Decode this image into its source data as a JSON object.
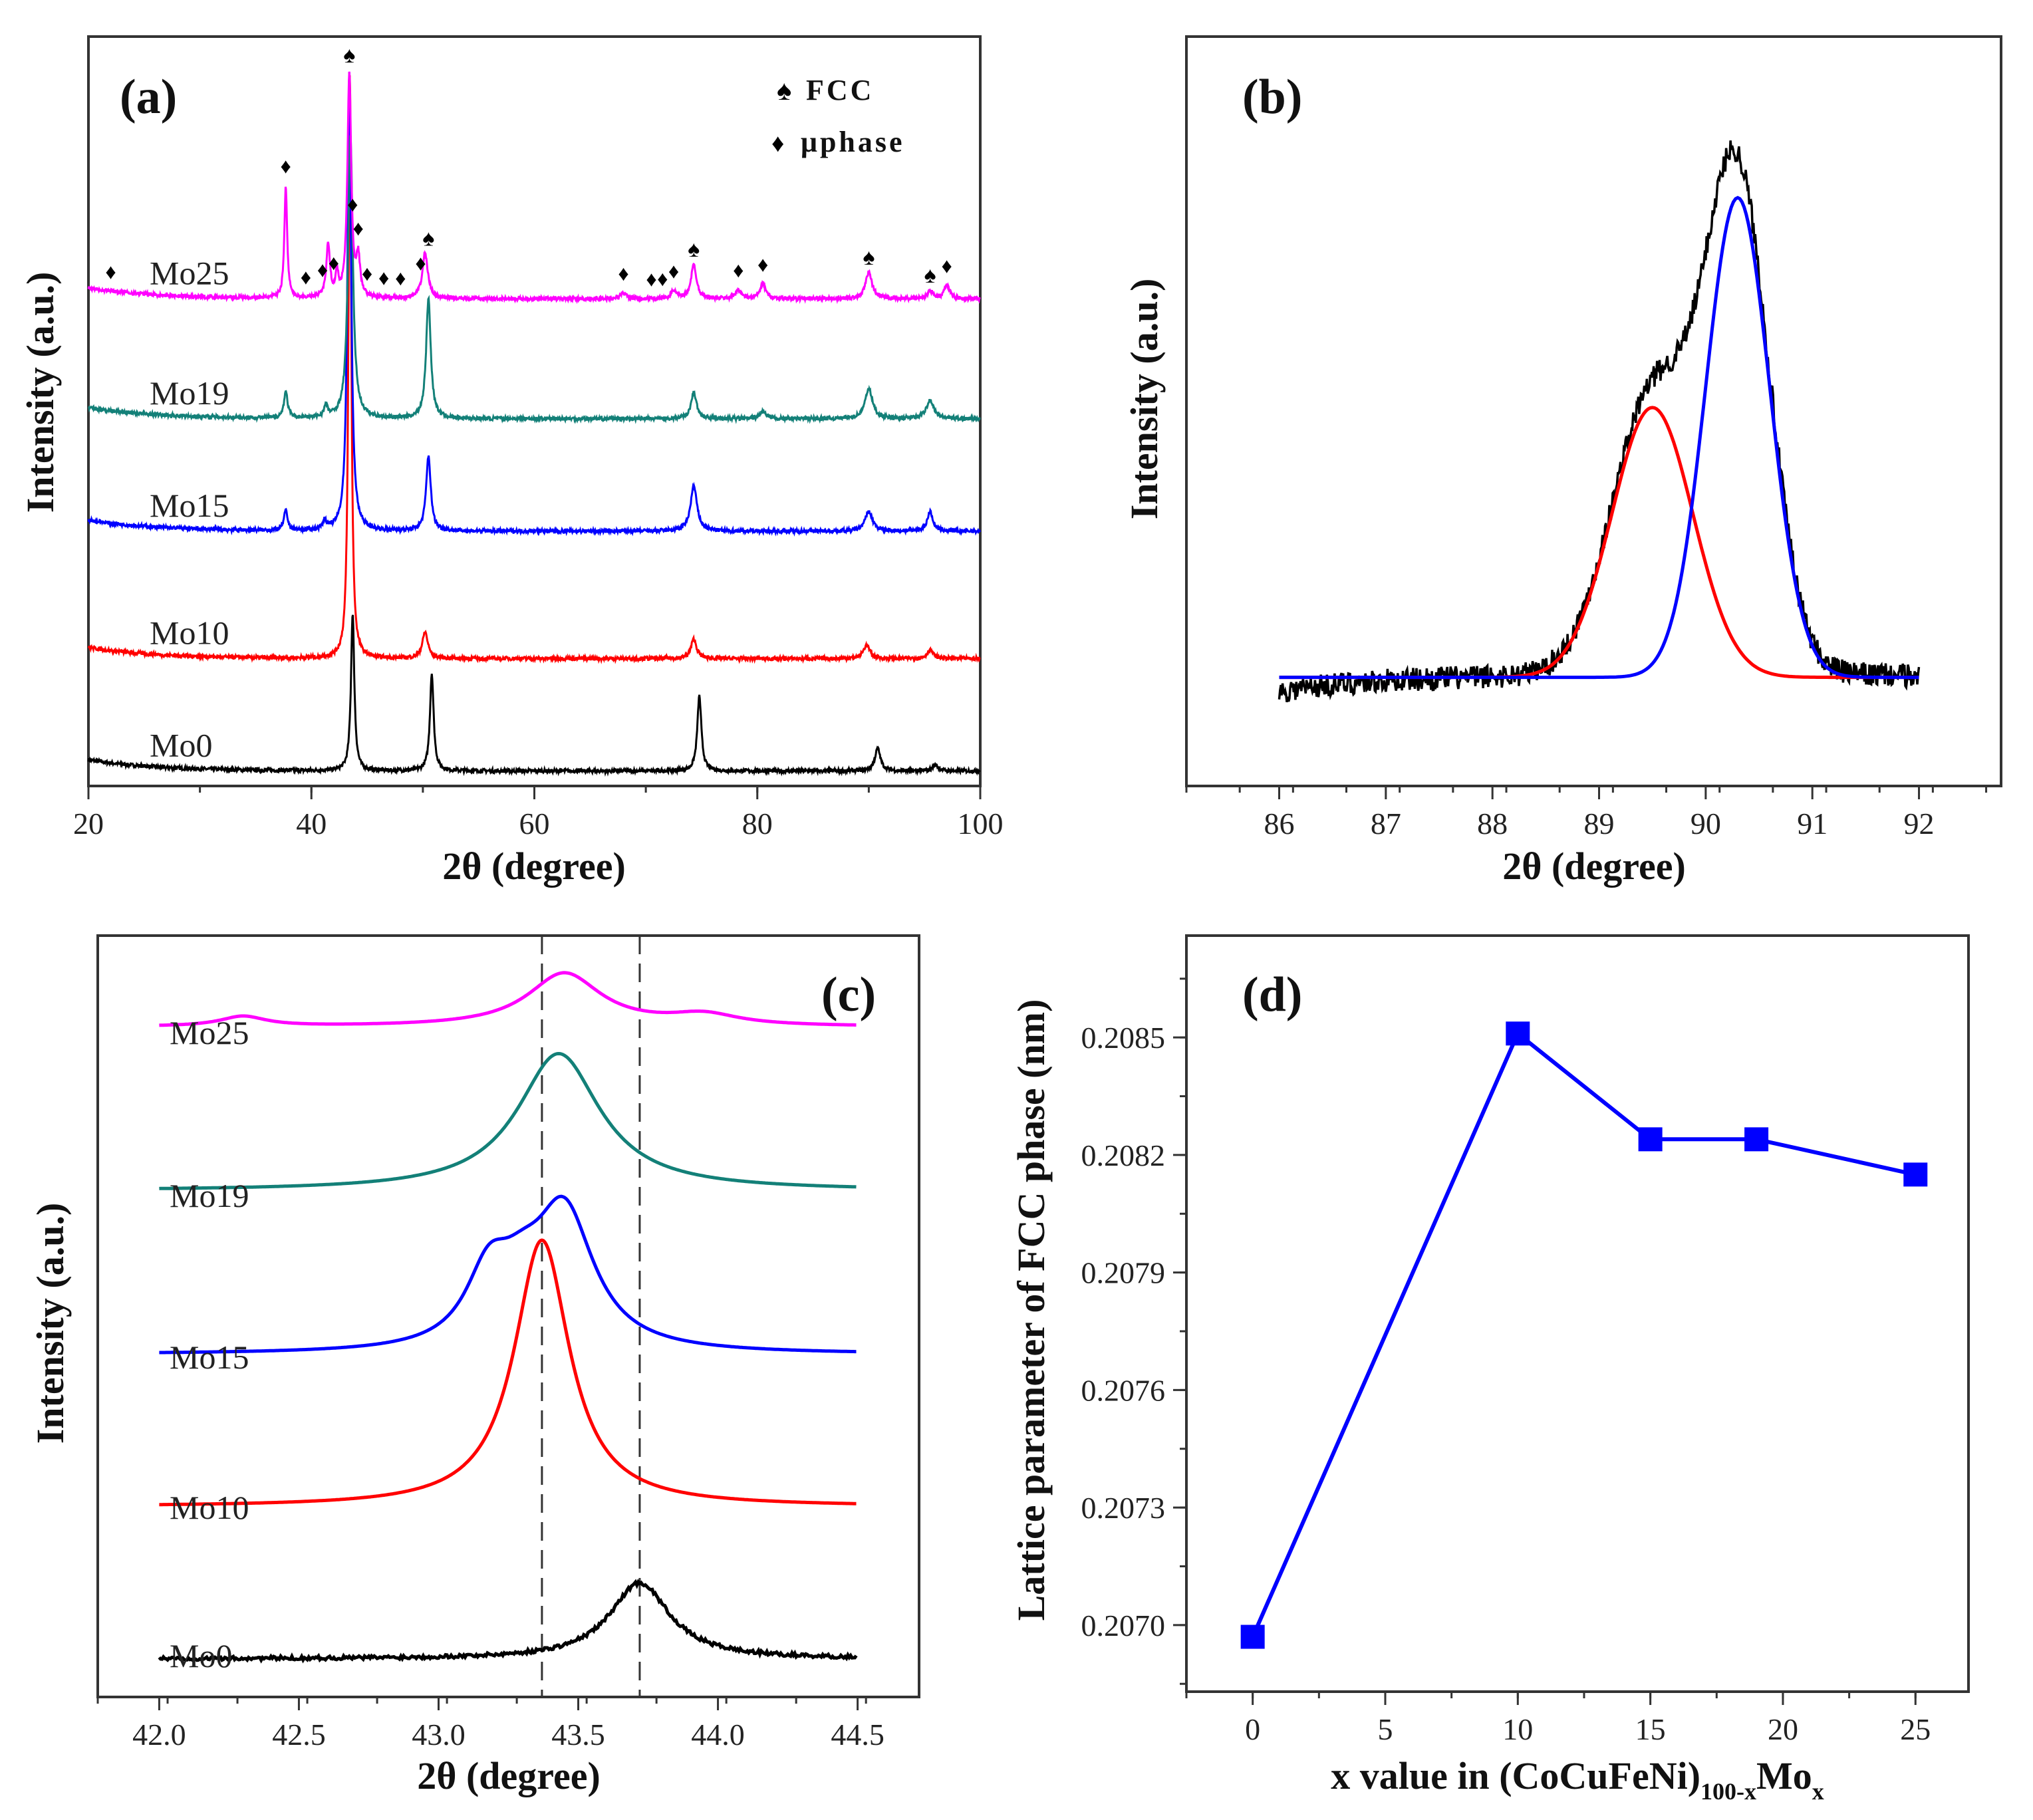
{
  "chart_data": [
    {
      "panel": "(a)",
      "type": "line",
      "xlabel": "2θ  (degree)",
      "ylabel": "Intensity (a.u.)",
      "xlim": [
        20,
        100
      ],
      "xticks": [
        "20",
        "40",
        "60",
        "80",
        "100"
      ],
      "legend": {
        "placement": "top-right",
        "entries": [
          {
            "symbol": "spade",
            "label": "FCC"
          },
          {
            "symbol": "diamond",
            "label": "μphase"
          }
        ]
      },
      "series": [
        {
          "name": "Mo0",
          "color": "#000000",
          "offset": 2,
          "peaks": [
            [
              43.7,
              21,
              0.18
            ],
            [
              50.8,
              13,
              0.2
            ],
            [
              74.8,
              10,
              0.22
            ],
            [
              90.8,
              3,
              0.3
            ],
            [
              96,
              0.8,
              0.3
            ]
          ]
        },
        {
          "name": "Mo10",
          "color": "#ff0000",
          "offset": 17,
          "peaks": [
            [
              43.45,
              78,
              0.15
            ],
            [
              50.2,
              3.5,
              0.3
            ],
            [
              74.3,
              2.6,
              0.3
            ],
            [
              89.8,
              1.8,
              0.35
            ],
            [
              95.5,
              1.2,
              0.3
            ]
          ]
        },
        {
          "name": "Mo15",
          "color": "#0000ff",
          "offset": 34,
          "peaks": [
            [
              43.4,
              61,
              0.2
            ],
            [
              50.5,
              10,
              0.25
            ],
            [
              74.3,
              6,
              0.35
            ],
            [
              90,
              2.6,
              0.4
            ],
            [
              95.5,
              2.6,
              0.3
            ],
            [
              37.7,
              2.6,
              0.2
            ],
            [
              41.2,
              1.2,
              0.2
            ]
          ]
        },
        {
          "name": "Mo19",
          "color": "#138078",
          "offset": 49,
          "peaks": [
            [
              43.5,
              38,
              0.25
            ],
            [
              50.5,
              16,
              0.25
            ],
            [
              37.7,
              3.5,
              0.2
            ],
            [
              74.3,
              3.5,
              0.3
            ],
            [
              90,
              4,
              0.4
            ],
            [
              95.5,
              2.5,
              0.4
            ],
            [
              41.3,
              1.5,
              0.2
            ],
            [
              80.5,
              1,
              0.3
            ]
          ]
        },
        {
          "name": "Mo25",
          "color": "#ff00ff",
          "offset": 65,
          "peaks": [
            [
              43.4,
              30,
              0.2
            ],
            [
              37.7,
              15,
              0.15
            ],
            [
              41.5,
              7,
              0.2
            ],
            [
              42.3,
              3,
              0.15
            ],
            [
              44.2,
              5,
              0.2
            ],
            [
              50.2,
              6,
              0.3
            ],
            [
              74.3,
              4.5,
              0.3
            ],
            [
              90,
              3.5,
              0.35
            ],
            [
              80.5,
              2,
              0.3
            ],
            [
              78.3,
              1.2,
              0.3
            ],
            [
              97,
              1.8,
              0.3
            ],
            [
              95.5,
              1,
              0.3
            ],
            [
              68,
              0.8,
              0.3
            ],
            [
              72.5,
              1,
              0.3
            ]
          ]
        }
      ],
      "markers": {
        "fcc": [
          43.4,
          50.5,
          74.3,
          90,
          95.5
        ],
        "mu": [
          22,
          37.7,
          39.5,
          41,
          42,
          43.7,
          44.2,
          45,
          46.5,
          48,
          49.8,
          68,
          70.5,
          71.5,
          72.5,
          78.3,
          80.5,
          97
        ]
      }
    },
    {
      "panel": "(b)",
      "type": "line",
      "xlabel": "2θ  (degree)",
      "ylabel": "Intensity (a.u.)",
      "xlim": [
        86,
        92
      ],
      "xticks": [
        "86",
        "87",
        "88",
        "89",
        "90",
        "91",
        "92"
      ],
      "series": [
        {
          "name": "measured",
          "color": "#000000"
        },
        {
          "name": "fit peak 1",
          "color": "#ff0000",
          "center": 89.5,
          "height": 36,
          "sigma": 0.38
        },
        {
          "name": "fit peak 2",
          "color": "#0000ff",
          "center": 90.3,
          "height": 64,
          "sigma": 0.3
        }
      ]
    },
    {
      "panel": "(c)",
      "type": "line",
      "xlabel": "2θ  (degree)",
      "ylabel": "Intensity (a.u.)",
      "xlim": [
        42.0,
        44.5
      ],
      "xticks": [
        "42.0",
        "42.5",
        "43.0",
        "43.5",
        "44.0",
        "44.5"
      ],
      "reference_lines": [
        43.37,
        43.72
      ],
      "series": [
        {
          "name": "Mo0",
          "color": "#000000",
          "offset": 5,
          "peaks": [
            [
              43.72,
              10,
              0.13
            ]
          ]
        },
        {
          "name": "Mo10",
          "color": "#ff0000",
          "offset": 25,
          "peaks": [
            [
              43.37,
              35,
              0.12
            ]
          ]
        },
        {
          "name": "Mo15",
          "color": "#0000ff",
          "offset": 45,
          "peaks": [
            [
              43.18,
              9,
              0.1
            ],
            [
              43.45,
              18,
              0.13
            ],
            [
              43.3,
              5,
              0.1
            ]
          ]
        },
        {
          "name": "Mo19",
          "color": "#138078",
          "offset": 66.5,
          "peaks": [
            [
              43.43,
              18,
              0.18
            ]
          ]
        },
        {
          "name": "Mo25",
          "color": "#ff00ff",
          "offset": 88,
          "peaks": [
            [
              43.45,
              7,
              0.16
            ],
            [
              42.3,
              1.3,
              0.1
            ],
            [
              43.95,
              1.4,
              0.15
            ]
          ]
        }
      ]
    },
    {
      "panel": "(d)",
      "type": "line",
      "xlabel_main": "x value in (CoCuFeNi)",
      "xlabel_sub1": "100-x",
      "xlabel_mid": "Mo",
      "xlabel_sub2": "x",
      "ylabel": "Lattice parameter of FCC phase (nm)",
      "xlim": [
        -2.5,
        27
      ],
      "ylim": [
        0.20683,
        0.20876
      ],
      "xticks": [
        "0",
        "5",
        "10",
        "15",
        "20",
        "25"
      ],
      "yticks": [
        "0.2070",
        "0.2073",
        "0.2076",
        "0.2079",
        "0.2082",
        "0.2085"
      ],
      "color": "#0000ff",
      "x": [
        0,
        10,
        15,
        19,
        25
      ],
      "y": [
        0.20697,
        0.20851,
        0.20824,
        0.20824,
        0.20815
      ]
    }
  ]
}
